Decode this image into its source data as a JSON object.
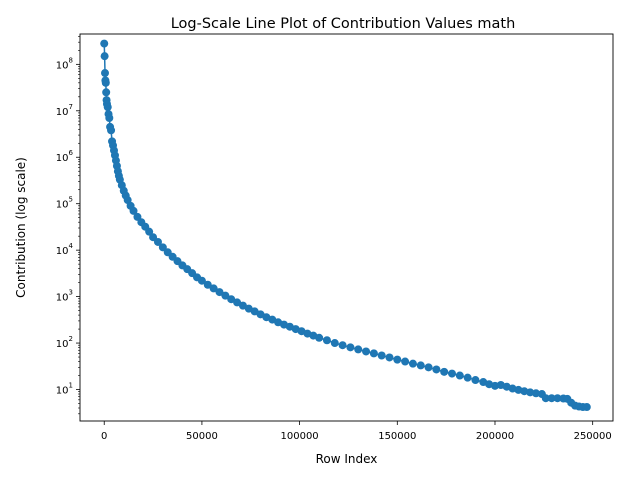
{
  "chart_data": {
    "type": "line",
    "title": "Log-Scale Line Plot of Contribution Values math",
    "xlabel": "Row Index",
    "ylabel": "Contribution (log scale)",
    "xlim": [
      -12400,
      260400
    ],
    "ylim": [
      2.1,
      450000000
    ],
    "yscale": "log",
    "grid": false,
    "marker": "circle",
    "x_ticks": [
      {
        "value": 0,
        "label": "0"
      },
      {
        "value": 50000,
        "label": "50000"
      },
      {
        "value": 100000,
        "label": "100000"
      },
      {
        "value": 150000,
        "label": "150000"
      },
      {
        "value": 200000,
        "label": "200000"
      },
      {
        "value": 250000,
        "label": "250000"
      }
    ],
    "y_ticks": [
      {
        "value": 10,
        "base": "10",
        "exp": "1"
      },
      {
        "value": 100,
        "base": "10",
        "exp": "2"
      },
      {
        "value": 1000,
        "base": "10",
        "exp": "3"
      },
      {
        "value": 10000,
        "base": "10",
        "exp": "4"
      },
      {
        "value": 100000,
        "base": "10",
        "exp": "5"
      },
      {
        "value": 1000000,
        "base": "10",
        "exp": "6"
      },
      {
        "value": 10000000,
        "base": "10",
        "exp": "7"
      },
      {
        "value": 100000000,
        "base": "10",
        "exp": "8"
      }
    ],
    "series": [
      {
        "color": "#1f77b4",
        "x": [
          0,
          200,
          400,
          600,
          800,
          1000,
          1200,
          1400,
          1800,
          2200,
          2600,
          3000,
          3500,
          4000,
          4500,
          5000,
          5500,
          6000,
          6500,
          7000,
          7500,
          8000,
          9000,
          10000,
          11000,
          12000,
          13500,
          15000,
          17000,
          19000,
          21000,
          23000,
          25000,
          27500,
          30000,
          32500,
          35000,
          37500,
          40000,
          42500,
          45000,
          47500,
          50000,
          53000,
          56000,
          59000,
          62000,
          65000,
          68000,
          71000,
          74000,
          77000,
          80000,
          83000,
          86000,
          89000,
          92000,
          95000,
          98000,
          101000,
          104000,
          107000,
          110000,
          114000,
          118000,
          122000,
          126000,
          130000,
          134000,
          138000,
          142000,
          146000,
          150000,
          154000,
          158000,
          162000,
          166000,
          170000,
          174000,
          178000,
          182000,
          186000,
          190000,
          194000,
          197000,
          200000,
          203000,
          206000,
          209000,
          212000,
          215000,
          218000,
          221000,
          224000,
          226000,
          229000,
          232000,
          235000,
          237000,
          239000,
          241000,
          243000,
          245000,
          247000
        ],
        "y": [
          280000000,
          150000000,
          65000000,
          45000000,
          40000000,
          25000000,
          17000000,
          14000000,
          12000000,
          8500000,
          7000000,
          4500000,
          3800000,
          2200000,
          1800000,
          1400000,
          1100000,
          850000,
          650000,
          500000,
          400000,
          330000,
          250000,
          190000,
          150000,
          120000,
          90000,
          70000,
          52000,
          40000,
          32000,
          25000,
          19000,
          15000,
          11500,
          9000,
          7200,
          5800,
          4700,
          3900,
          3200,
          2600,
          2200,
          1800,
          1500,
          1250,
          1050,
          880,
          750,
          640,
          550,
          480,
          415,
          360,
          320,
          280,
          250,
          225,
          200,
          180,
          160,
          145,
          130,
          115,
          100,
          90,
          81,
          73,
          66,
          60,
          54,
          49,
          44,
          40,
          36,
          33,
          30,
          27,
          24,
          22,
          20,
          18,
          16,
          14.5,
          13,
          12,
          12.5,
          11.5,
          10.5,
          9.8,
          9.2,
          8.7,
          8.3,
          8,
          6.5,
          6.5,
          6.5,
          6.4,
          6.3,
          5.2,
          4.5,
          4.3,
          4.2,
          4.2
        ]
      }
    ]
  }
}
